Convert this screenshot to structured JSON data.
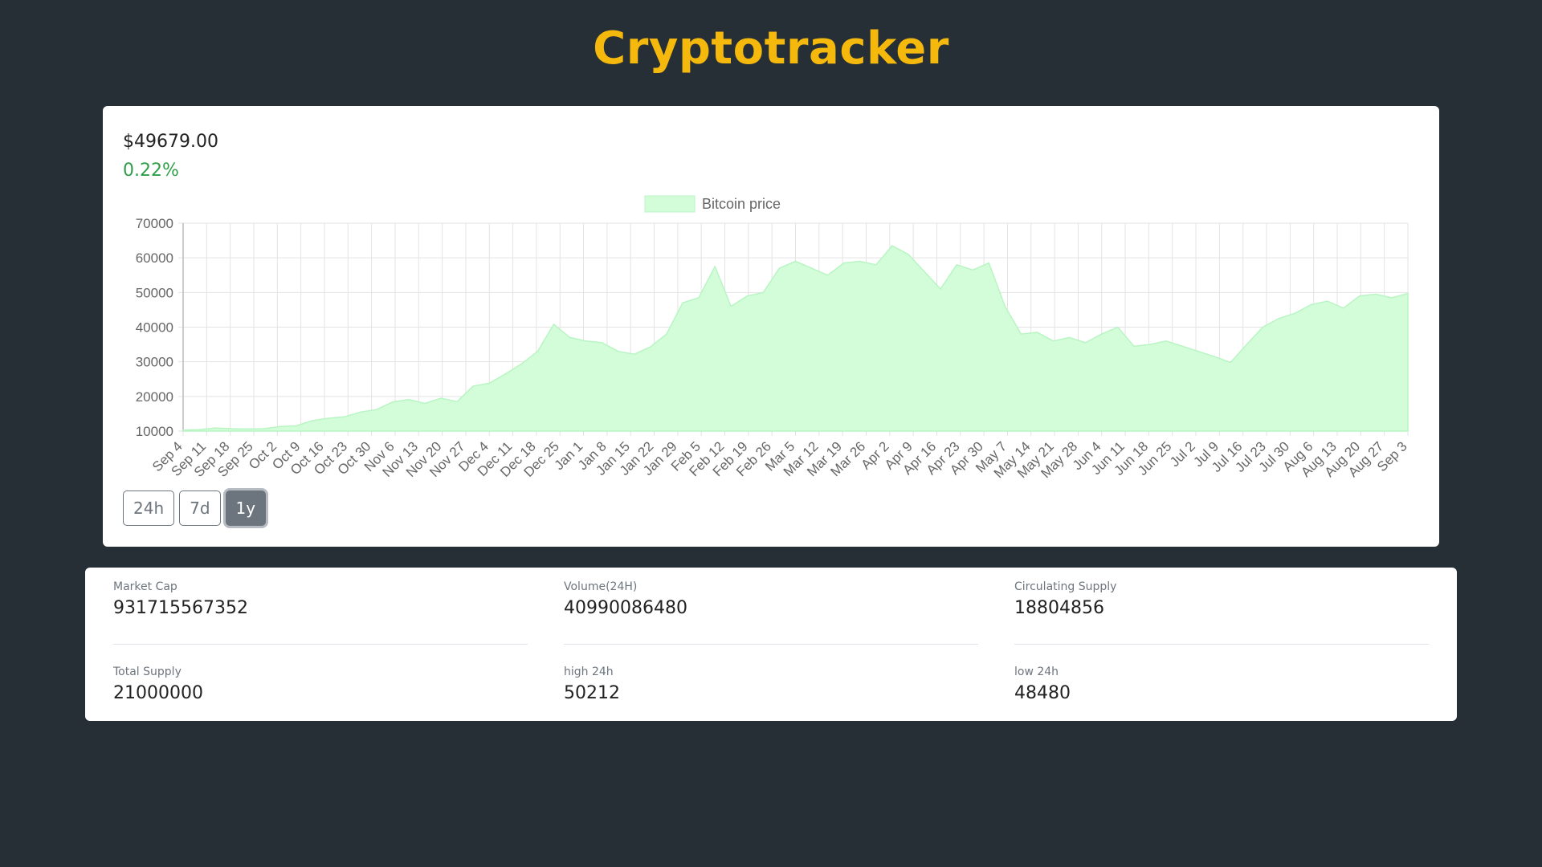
{
  "app": {
    "title": "Cryptotracker"
  },
  "coin": {
    "price": "$49679.00",
    "change": "0.22%"
  },
  "colors": {
    "background": "#262f36",
    "title": "#f5b80d",
    "positive": "#2e9e48",
    "chart_fill": "#d3fdd9",
    "chart_line": "#b8f5c3"
  },
  "range_buttons": [
    {
      "label": "24h",
      "active": false
    },
    {
      "label": "7d",
      "active": false
    },
    {
      "label": "1y",
      "active": true
    }
  ],
  "stats": [
    {
      "label": "Market Cap",
      "value": "931715567352"
    },
    {
      "label": "Volume(24H)",
      "value": "40990086480"
    },
    {
      "label": "Circulating Supply",
      "value": "18804856"
    },
    {
      "label": "Total Supply",
      "value": "21000000"
    },
    {
      "label": "high 24h",
      "value": "50212"
    },
    {
      "label": "low 24h",
      "value": "48480"
    }
  ],
  "chart_data": {
    "type": "area",
    "legend": "Bitcoin price",
    "legend_position": "top-center",
    "grid": true,
    "ylim": [
      10000,
      70000
    ],
    "y_ticks": [
      10000,
      20000,
      30000,
      40000,
      50000,
      60000,
      70000
    ],
    "x_tick_labels": [
      "Sep 4",
      "Sep 11",
      "Sep 18",
      "Sep 25",
      "Oct 2",
      "Oct 9",
      "Oct 16",
      "Oct 23",
      "Oct 30",
      "Nov 6",
      "Nov 13",
      "Nov 20",
      "Nov 27",
      "Dec 4",
      "Dec 11",
      "Dec 18",
      "Dec 25",
      "Jan 1",
      "Jan 8",
      "Jan 15",
      "Jan 22",
      "Jan 29",
      "Feb 5",
      "Feb 12",
      "Feb 19",
      "Feb 26",
      "Mar 5",
      "Mar 12",
      "Mar 19",
      "Mar 26",
      "Apr 2",
      "Apr 9",
      "Apr 16",
      "Apr 23",
      "Apr 30",
      "May 7",
      "May 14",
      "May 21",
      "May 28",
      "Jun 4",
      "Jun 11",
      "Jun 18",
      "Jun 25",
      "Jul 2",
      "Jul 9",
      "Jul 16",
      "Jul 23",
      "Jul 30",
      "Aug 6",
      "Aug 13",
      "Aug 20",
      "Aug 27",
      "Sep 3"
    ],
    "series": [
      {
        "name": "Bitcoin price",
        "values": [
          10300,
          10400,
          10900,
          10700,
          10600,
          10700,
          11300,
          11500,
          13000,
          13700,
          14100,
          15500,
          16200,
          18400,
          19100,
          18000,
          19500,
          18500,
          23000,
          23800,
          26500,
          29400,
          33000,
          40800,
          37000,
          36000,
          35500,
          33000,
          32200,
          34300,
          38000,
          47000,
          48500,
          57500,
          46000,
          49000,
          50000,
          57000,
          59000,
          57000,
          55000,
          58500,
          59000,
          58000,
          63500,
          61000,
          56000,
          51000,
          58000,
          56500,
          58500,
          46000,
          38000,
          38500,
          36000,
          37000,
          35500,
          38000,
          40000,
          34500,
          35000,
          36000,
          34500,
          33000,
          31500,
          29800,
          35000,
          40000,
          42500,
          44000,
          46500,
          47500,
          45500,
          49000,
          49500,
          48500,
          49700
        ]
      }
    ]
  }
}
